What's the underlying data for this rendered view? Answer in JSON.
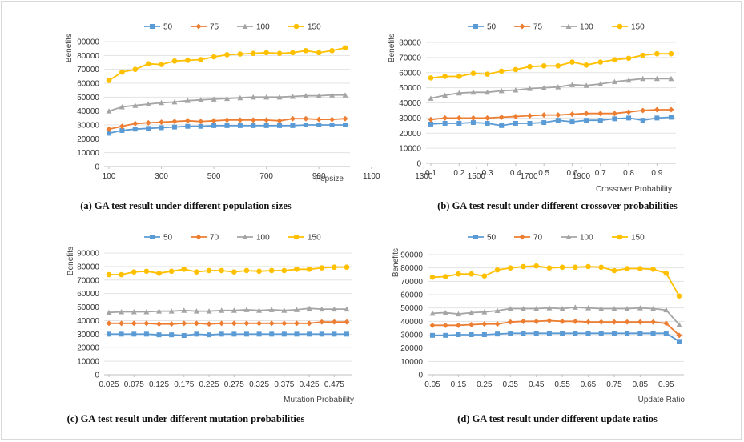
{
  "colors": {
    "s50": "#5b9bd5",
    "s75": "#ed7d31",
    "s100": "#a5a5a5",
    "s150": "#ffc000",
    "grid": "#e3e3e3",
    "axis": "#bfbfbf"
  },
  "chart_data": [
    {
      "type": "line",
      "caption": "(a) GA test result under different population sizes",
      "xlabel": "Popsize",
      "ylabel": "Benefits",
      "ylim": [
        0,
        90000
      ],
      "yticks": [
        "0",
        "10000",
        "20000",
        "30000",
        "40000",
        "50000",
        "60000",
        "70000",
        "80000",
        "90000"
      ],
      "xlim": [
        100,
        1000
      ],
      "xticks": [
        "100",
        "300",
        "500",
        "700",
        "900",
        "1100",
        "1300",
        "1500",
        "1700",
        "1900"
      ],
      "x": [
        100,
        150,
        200,
        250,
        300,
        350,
        400,
        450,
        500,
        550,
        600,
        650,
        700,
        750,
        800,
        850,
        900,
        950,
        1000
      ],
      "legend_position": "top",
      "grid": true,
      "series": [
        {
          "name": "50",
          "values": [
            24000,
            26000,
            27000,
            27500,
            28000,
            28500,
            29000,
            29000,
            29500,
            29500,
            29500,
            29500,
            29500,
            29500,
            29500,
            30000,
            30000,
            30000,
            30000
          ]
        },
        {
          "name": "75",
          "values": [
            27000,
            29000,
            31000,
            31500,
            32000,
            32500,
            33000,
            32500,
            33000,
            33500,
            33500,
            33500,
            33500,
            33000,
            34500,
            34500,
            34000,
            34000,
            34500
          ]
        },
        {
          "name": "100",
          "values": [
            40000,
            43000,
            44000,
            45000,
            46000,
            46500,
            47500,
            48000,
            48500,
            49000,
            49500,
            50000,
            50000,
            50000,
            50500,
            51000,
            51000,
            51500,
            51500
          ]
        },
        {
          "name": "150",
          "values": [
            62000,
            68000,
            70000,
            74000,
            73500,
            76000,
            76500,
            77000,
            79000,
            80500,
            81000,
            81500,
            82000,
            81500,
            82000,
            83500,
            82000,
            83500,
            85500
          ]
        }
      ]
    },
    {
      "type": "line",
      "caption": "(b) GA test result under different crossover probabilities",
      "xlabel": "Crossover Probability",
      "ylabel": "Benefits",
      "ylim": [
        0,
        80000
      ],
      "yticks": [
        "0",
        "10000",
        "20000",
        "30000",
        "40000",
        "50000",
        "60000",
        "70000",
        "80000"
      ],
      "xlim": [
        0.1,
        0.95
      ],
      "xticks": [
        "0.1",
        "0.2",
        "0.3",
        "0.4",
        "0.5",
        "0.6",
        "0.7",
        "0.8",
        "0.9"
      ],
      "x": [
        0.1,
        0.15,
        0.2,
        0.25,
        0.3,
        0.35,
        0.4,
        0.45,
        0.5,
        0.55,
        0.6,
        0.65,
        0.7,
        0.75,
        0.8,
        0.85,
        0.9,
        0.95
      ],
      "legend_position": "top",
      "grid": true,
      "series": [
        {
          "name": "50",
          "values": [
            26000,
            26500,
            26500,
            27000,
            26500,
            25000,
            26500,
            26500,
            27000,
            28500,
            27500,
            28500,
            28500,
            29500,
            30000,
            28500,
            30000,
            30500
          ]
        },
        {
          "name": "75",
          "values": [
            29000,
            30000,
            30000,
            30000,
            30000,
            30500,
            31000,
            31500,
            32000,
            32000,
            32500,
            33000,
            33000,
            33000,
            34000,
            35000,
            35500,
            35500
          ]
        },
        {
          "name": "100",
          "values": [
            43000,
            45000,
            46500,
            47000,
            47000,
            48000,
            48500,
            49500,
            50000,
            50500,
            52000,
            51500,
            52500,
            54000,
            55000,
            56000,
            56000,
            56000
          ]
        },
        {
          "name": "150",
          "values": [
            56500,
            57500,
            57500,
            59500,
            59000,
            61000,
            62000,
            64000,
            64500,
            64500,
            67000,
            65000,
            67000,
            68500,
            69500,
            71500,
            72500,
            72500
          ]
        }
      ]
    },
    {
      "type": "line",
      "caption": "(c) GA test result under different mutation probabilities",
      "xlabel": "Mutation Probability",
      "ylabel": "Benefits",
      "ylim": [
        0,
        90000
      ],
      "yticks": [
        "0",
        "10000",
        "20000",
        "30000",
        "40000",
        "50000",
        "60000",
        "70000",
        "80000",
        "90000"
      ],
      "xlim": [
        0.025,
        0.5
      ],
      "xticks": [
        "0.025",
        "0.075",
        "0.125",
        "0.175",
        "0.225",
        "0.275",
        "0.325",
        "0.375",
        "0.425",
        "0.475"
      ],
      "x": [
        0.025,
        0.05,
        0.075,
        0.1,
        0.125,
        0.15,
        0.175,
        0.2,
        0.225,
        0.25,
        0.275,
        0.3,
        0.325,
        0.35,
        0.375,
        0.4,
        0.425,
        0.45,
        0.475,
        0.5
      ],
      "legend_position": "top",
      "grid": true,
      "series": [
        {
          "name": "50",
          "values": [
            30000,
            30000,
            30000,
            30000,
            29500,
            29500,
            29000,
            30000,
            29500,
            30000,
            30000,
            30000,
            30000,
            30000,
            30000,
            30000,
            30000,
            30000,
            30000,
            30000
          ]
        },
        {
          "name": "70",
          "values": [
            38000,
            38000,
            38000,
            38000,
            37500,
            37500,
            38000,
            38000,
            37500,
            38000,
            38000,
            38000,
            38000,
            38000,
            38000,
            38000,
            38000,
            39000,
            39000,
            39000
          ]
        },
        {
          "name": "100",
          "values": [
            46000,
            46500,
            46500,
            46500,
            47000,
            47000,
            47500,
            47000,
            47000,
            47500,
            47500,
            48000,
            47500,
            48000,
            47500,
            48000,
            49000,
            48500,
            48500,
            48500
          ]
        },
        {
          "name": "150",
          "values": [
            74000,
            74000,
            76000,
            76500,
            75000,
            76500,
            78000,
            76000,
            77000,
            77000,
            76000,
            77000,
            76500,
            77000,
            77000,
            78000,
            78000,
            79000,
            79500,
            79500
          ]
        }
      ]
    },
    {
      "type": "line",
      "caption": "(d) GA test result under different update ratios",
      "xlabel": "Update Ratio",
      "ylabel": "Benefits",
      "ylim": [
        0,
        90000
      ],
      "yticks": [
        "0",
        "10000",
        "20000",
        "30000",
        "40000",
        "50000",
        "60000",
        "70000",
        "80000",
        "90000"
      ],
      "xlim": [
        0.05,
        1.0
      ],
      "xticks": [
        "0.05",
        "0.15",
        "0.25",
        "0.35",
        "0.45",
        "0.55",
        "0.65",
        "0.75",
        "0.85",
        "0.95"
      ],
      "x": [
        0.05,
        0.1,
        0.15,
        0.2,
        0.25,
        0.3,
        0.35,
        0.4,
        0.45,
        0.5,
        0.55,
        0.6,
        0.65,
        0.7,
        0.75,
        0.8,
        0.85,
        0.9,
        0.95,
        1.0
      ],
      "legend_position": "top",
      "grid": true,
      "series": [
        {
          "name": "50",
          "values": [
            29500,
            29500,
            30000,
            30000,
            30000,
            30500,
            31000,
            31000,
            31000,
            31000,
            31000,
            31000,
            31000,
            31000,
            31000,
            31000,
            31000,
            31000,
            31000,
            25000
          ]
        },
        {
          "name": "70",
          "values": [
            37000,
            37000,
            37000,
            37500,
            38000,
            38000,
            39500,
            40000,
            40000,
            40500,
            40000,
            40000,
            39500,
            39500,
            39500,
            39500,
            39500,
            39500,
            38500,
            29500
          ]
        },
        {
          "name": "100",
          "values": [
            46000,
            46500,
            45500,
            46500,
            47000,
            48000,
            49500,
            49500,
            49500,
            50000,
            49500,
            50500,
            50000,
            49500,
            49500,
            49500,
            50000,
            49500,
            48500,
            37500
          ]
        },
        {
          "name": "150",
          "values": [
            73000,
            73500,
            75500,
            75500,
            74000,
            78500,
            80000,
            81000,
            81500,
            80000,
            80500,
            80500,
            81000,
            80500,
            78000,
            79500,
            79500,
            79000,
            76000,
            59000
          ]
        }
      ]
    }
  ]
}
